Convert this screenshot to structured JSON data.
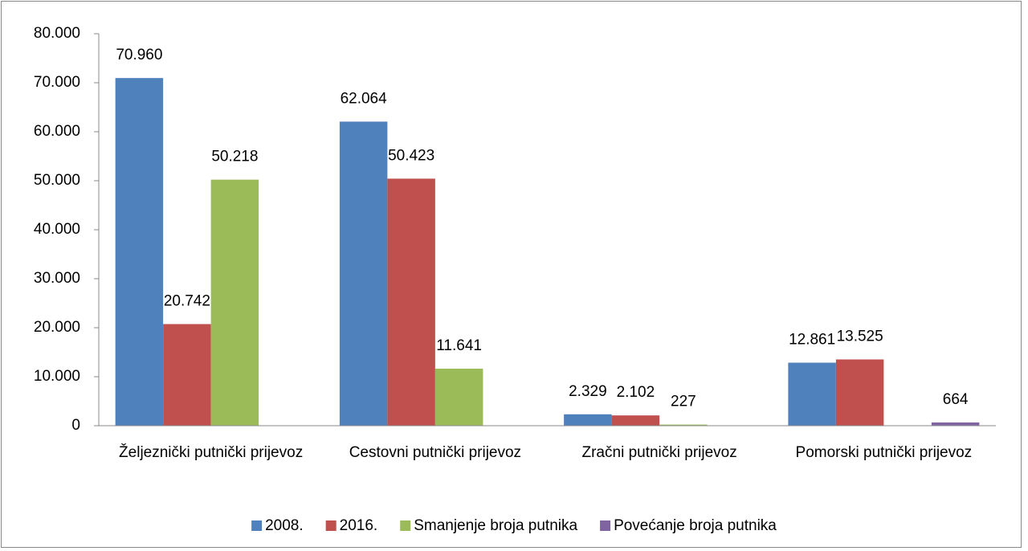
{
  "chart_data": {
    "type": "bar",
    "categories": [
      "Željeznički putnički prijevoz",
      "Cestovni putnički prijevoz",
      "Zračni putnički prijevoz",
      "Pomorski putnički prijevoz"
    ],
    "series": [
      {
        "name": "2008.",
        "color": "#4f81bd",
        "values": [
          70960,
          62064,
          2329,
          12861
        ],
        "value_labels": [
          "70.960",
          "62.064",
          "2.329",
          "12.861"
        ]
      },
      {
        "name": "2016.",
        "color": "#c0504d",
        "values": [
          20742,
          50423,
          2102,
          13525
        ],
        "value_labels": [
          "20.742",
          "50.423",
          "2.102",
          "13.525"
        ]
      },
      {
        "name": "Smanjenje broja putnika",
        "color": "#9bbb59",
        "values": [
          50218,
          11641,
          227,
          null
        ],
        "value_labels": [
          "50.218",
          "11.641",
          "227",
          null
        ]
      },
      {
        "name": "Povećanje broja putnika",
        "color": "#8064a2",
        "values": [
          null,
          null,
          null,
          664
        ],
        "value_labels": [
          null,
          null,
          null,
          "664"
        ]
      }
    ],
    "ylim": [
      0,
      80000
    ],
    "yticks": [
      0,
      {
        "value": 10000,
        "label": "10.000"
      },
      {
        "value": 20000,
        "label": "20.000"
      },
      {
        "value": 30000,
        "label": "30.000"
      },
      {
        "value": 40000,
        "label": "40.000"
      },
      {
        "value": 50000,
        "label": "50.000"
      },
      {
        "value": 60000,
        "label": "60.000"
      },
      {
        "value": 70000,
        "label": "70.000"
      },
      {
        "value": 80000,
        "label": "80.000"
      }
    ],
    "legend": "bottom"
  }
}
